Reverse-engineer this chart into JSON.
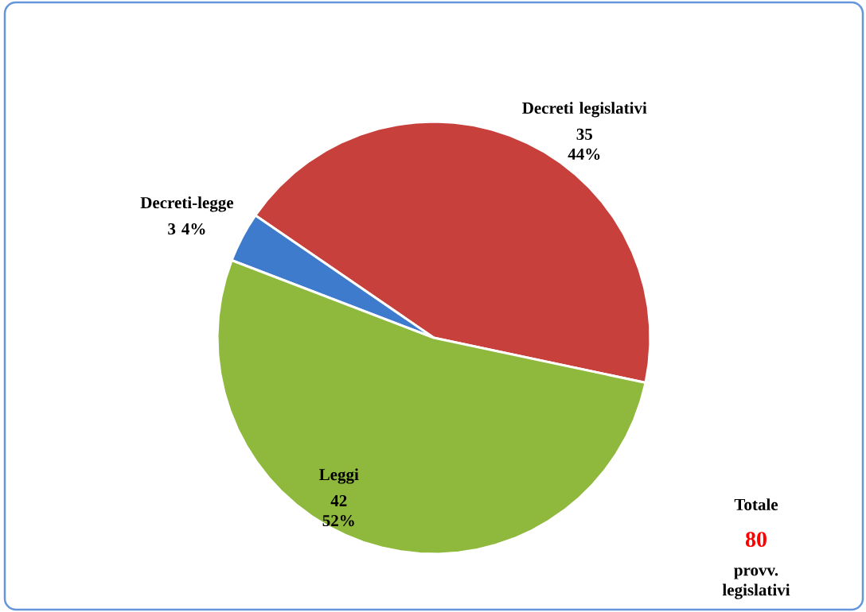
{
  "chart_data": {
    "type": "pie",
    "categories": [
      "Decreti legislativi",
      "Decreti-legge",
      "Leggi"
    ],
    "values": [
      35,
      3,
      42
    ],
    "colors": [
      "#c8403b",
      "#3f7bcc",
      "#8fb93d"
    ],
    "value_labels": [
      "35 44%",
      "3 4%",
      "42 52%"
    ],
    "annotations": [
      "Totale",
      "80",
      "provv. legislativi"
    ]
  }
}
